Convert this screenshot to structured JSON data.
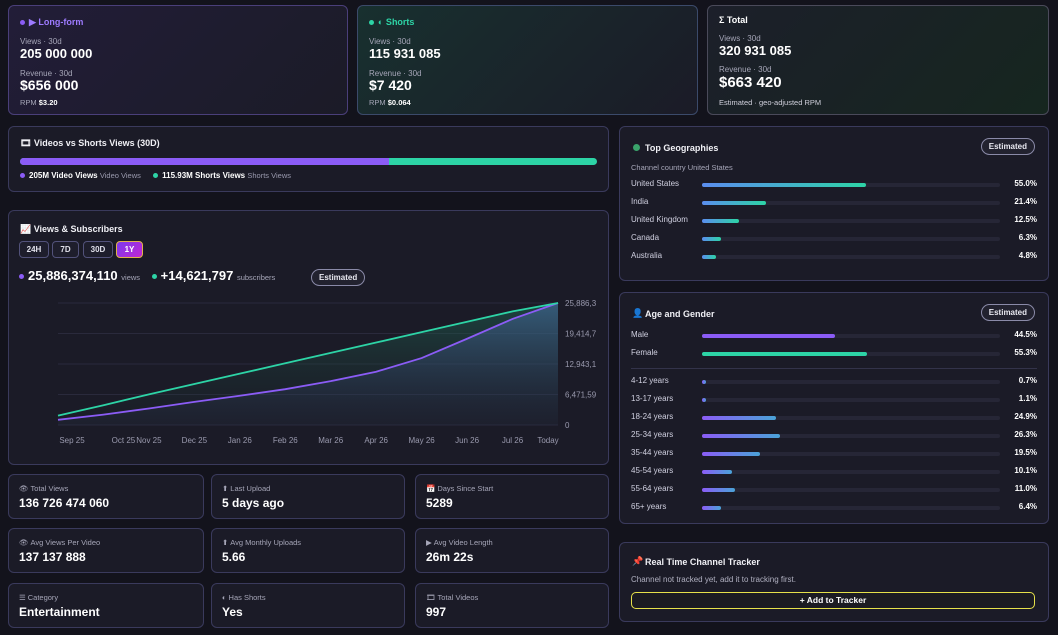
{
  "longform": {
    "title": "▶ Long-form",
    "views_label": "Views · 30d",
    "views": "205 000 000",
    "revenue_label": "Revenue · 30d",
    "revenue": "$656 000",
    "rpm_label": "RPM",
    "rpm": "$3.20"
  },
  "shorts": {
    "title": "◐ Shorts",
    "views_label": "Views · 30d",
    "views": "115 931 085",
    "revenue_label": "Revenue · 30d",
    "revenue": "$7 420",
    "rpm_label": "RPM",
    "rpm": "$0.064"
  },
  "total": {
    "title": "Σ Total",
    "views_label": "Views · 30d",
    "views": "320 931 085",
    "revenue_label": "Revenue · 30d",
    "revenue": "$663 420",
    "note": "Estimated · geo-adjusted RPM"
  },
  "vs": {
    "title": "🎞 Videos vs Shorts Views (30D)",
    "video_fraction": 0.639,
    "video_legend": "205M Video Views",
    "video_sub": "Video Views",
    "shorts_legend": "115.93M Shorts Views",
    "shorts_sub": "Shorts Views"
  },
  "chart_card": {
    "title": "📈 Views & Subscribers",
    "ranges": [
      "24H",
      "7D",
      "30D",
      "1Y"
    ],
    "active_range": "1Y",
    "views_total": "25,886,374,110",
    "views_unit": "views",
    "subs_total": "+14,621,797",
    "subs_unit": "subscribers",
    "badge": "Estimated"
  },
  "chart_data": {
    "type": "line",
    "x": [
      "Sep 25",
      "Oct 25",
      "Nov 25",
      "Dec 25",
      "Jan 26",
      "Feb 26",
      "Mar 26",
      "Apr 26",
      "May 26",
      "Jun 26",
      "Jul 26",
      "Today"
    ],
    "yticks": [
      "25,886,3",
      "19,414,7",
      "12,943,1",
      "6,471,59",
      "0"
    ],
    "ylim": [
      0,
      25886374110
    ],
    "series": [
      {
        "name": "views",
        "color": "#8b5cf6",
        "values": [
          1100000000,
          2200000000,
          3500000000,
          4900000000,
          6200000000,
          7600000000,
          9300000000,
          11300000000,
          14200000000,
          18300000000,
          22500000000,
          25886374110
        ]
      },
      {
        "name": "subscribers",
        "color": "#2dd4a6",
        "values": [
          2000000000,
          4200000000,
          6500000000,
          8700000000,
          10900000000,
          13100000000,
          15300000000,
          17500000000,
          19700000000,
          21900000000,
          24100000000,
          25886374110
        ]
      }
    ]
  },
  "stats": [
    {
      "icon": "👁",
      "label": "Total Views",
      "value": "136 726 474 060"
    },
    {
      "icon": "⬆",
      "label": "Last Upload",
      "value": "5 days ago"
    },
    {
      "icon": "📅",
      "label": "Days Since Start",
      "value": "5289"
    },
    {
      "icon": "👁",
      "label": "Avg Views Per Video",
      "value": "137 137 888"
    },
    {
      "icon": "⬆",
      "label": "Avg Monthly Uploads",
      "value": "5.66"
    },
    {
      "icon": "▶",
      "label": "Avg Video Length",
      "value": "26m 22s"
    },
    {
      "icon": "☰",
      "label": "Category",
      "value": "Entertainment"
    },
    {
      "icon": "◐",
      "label": "Has Shorts",
      "value": "Yes"
    },
    {
      "icon": "🎞",
      "label": "Total Videos",
      "value": "997"
    }
  ],
  "geo": {
    "title": "Top Geographies",
    "badge": "Estimated",
    "subtitle": "Channel country United States",
    "rows": [
      {
        "name": "United States",
        "pct": "55.0%",
        "frac": 0.55
      },
      {
        "name": "India",
        "pct": "21.4%",
        "frac": 0.214
      },
      {
        "name": "United Kingdom",
        "pct": "12.5%",
        "frac": 0.125
      },
      {
        "name": "Canada",
        "pct": "6.3%",
        "frac": 0.063
      },
      {
        "name": "Australia",
        "pct": "4.8%",
        "frac": 0.048
      }
    ]
  },
  "age": {
    "title": "Age and Gender",
    "badge": "Estimated",
    "gender": [
      {
        "name": "Male",
        "pct": "44.5%",
        "frac": 0.445,
        "color": "#8b5cf6"
      },
      {
        "name": "Female",
        "pct": "55.3%",
        "frac": 0.553,
        "color": "#2dd4a6"
      }
    ],
    "ages": [
      {
        "name": "4-12 years",
        "pct": "0.7%",
        "frac": 0.007
      },
      {
        "name": "13-17 years",
        "pct": "1.1%",
        "frac": 0.011
      },
      {
        "name": "18-24 years",
        "pct": "24.9%",
        "frac": 0.249
      },
      {
        "name": "25-34 years",
        "pct": "26.3%",
        "frac": 0.263
      },
      {
        "name": "35-44 years",
        "pct": "19.5%",
        "frac": 0.195
      },
      {
        "name": "45-54 years",
        "pct": "10.1%",
        "frac": 0.101
      },
      {
        "name": "55-64 years",
        "pct": "11.0%",
        "frac": 0.11
      },
      {
        "name": "65+ years",
        "pct": "6.4%",
        "frac": 0.064
      }
    ]
  },
  "tracker": {
    "title": "Real Time Channel Tracker",
    "text": "Channel not tracked yet, add it to tracking first.",
    "button": "+ Add to Tracker"
  },
  "colors": {
    "purple": "#8b5cf6",
    "teal": "#2dd4a6",
    "blue": "#5b8def",
    "yellow": "#e6e14a"
  }
}
